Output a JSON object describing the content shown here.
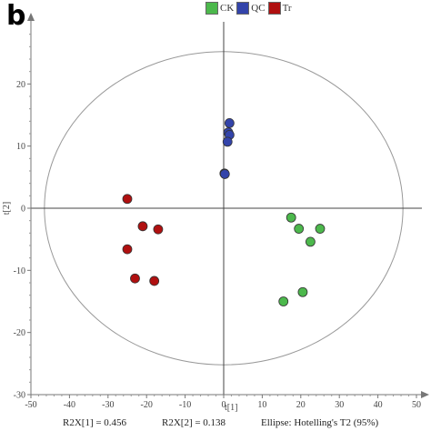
{
  "panel_label": "b",
  "legend": [
    {
      "name": "CK",
      "color": "#4cb84c"
    },
    {
      "name": "QC",
      "color": "#3344aa"
    },
    {
      "name": "Tr",
      "color": "#b01010"
    }
  ],
  "footer": {
    "r2x1": "R2X[1] = 0.456",
    "r2x2": "R2X[2] = 0.138",
    "ellipse": "Ellipse: Hotelling's T2 (95%)"
  },
  "chart_data": {
    "type": "scatter",
    "xlabel": "t[1]",
    "ylabel": "t[2]",
    "xlim": [
      -50,
      50
    ],
    "ylim": [
      -30,
      30
    ],
    "xticks": [
      -50,
      -40,
      -30,
      -20,
      -10,
      0,
      10,
      20,
      30,
      40,
      50
    ],
    "yticks": [
      -30,
      -20,
      -10,
      0,
      10,
      20
    ],
    "ellipse": {
      "rx": 46.5,
      "ry": 25.2
    },
    "series": [
      {
        "name": "CK",
        "color": "#4cb84c",
        "points": [
          [
            17.5,
            -1.5
          ],
          [
            19.5,
            -3.3
          ],
          [
            25,
            -3.3
          ],
          [
            22.5,
            -5.4
          ],
          [
            20.5,
            -13.5
          ],
          [
            15.5,
            -15
          ]
        ]
      },
      {
        "name": "QC",
        "color": "#3344aa",
        "points": [
          [
            1.5,
            13.7
          ],
          [
            1.2,
            12.2
          ],
          [
            1.5,
            11.8
          ],
          [
            1,
            10.7
          ],
          [
            0.2,
            5.6
          ],
          [
            0.3,
            5.5
          ]
        ]
      },
      {
        "name": "Tr",
        "color": "#b01010",
        "points": [
          [
            -25,
            1.5
          ],
          [
            -21,
            -2.9
          ],
          [
            -17,
            -3.4
          ],
          [
            -25,
            -6.6
          ],
          [
            -23,
            -11.3
          ],
          [
            -18,
            -11.7
          ]
        ]
      }
    ]
  }
}
